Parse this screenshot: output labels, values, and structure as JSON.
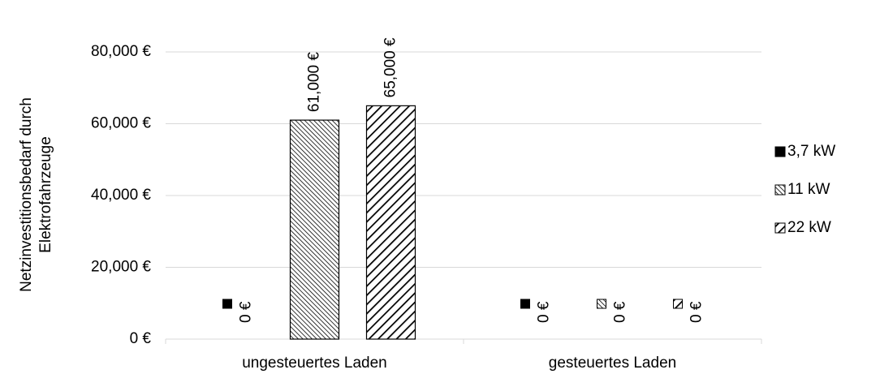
{
  "chart_data": {
    "type": "bar",
    "ylabel": [
      "Netzinvestitionsbedarf durch",
      "Elektrofahrzeuge"
    ],
    "categories": [
      "ungesteuertes Laden",
      "gesteuertes Laden"
    ],
    "series": [
      {
        "name": "3,7 kW",
        "color": "#000000",
        "pattern": "solid",
        "values": [
          0,
          0
        ],
        "value_labels": [
          "0 €",
          "0 €"
        ]
      },
      {
        "name": "11 kW",
        "color": "#000000",
        "pattern": "dense-hatch",
        "values": [
          61000,
          0
        ],
        "value_labels": [
          "61,000 €",
          "0 €"
        ]
      },
      {
        "name": "22 kW",
        "color": "#000000",
        "pattern": "wide-hatch",
        "values": [
          65000,
          0
        ],
        "value_labels": [
          "65,000 €",
          "0 €"
        ]
      }
    ],
    "ylim": [
      0,
      80000
    ],
    "yticks": [
      {
        "value": 0,
        "label": "0 €"
      },
      {
        "value": 20000,
        "label": "20,000 €"
      },
      {
        "value": 40000,
        "label": "40,000 €"
      },
      {
        "value": 60000,
        "label": "60,000 €"
      },
      {
        "value": 80000,
        "label": "80,000 €"
      }
    ],
    "grid": true,
    "legend": "right"
  }
}
